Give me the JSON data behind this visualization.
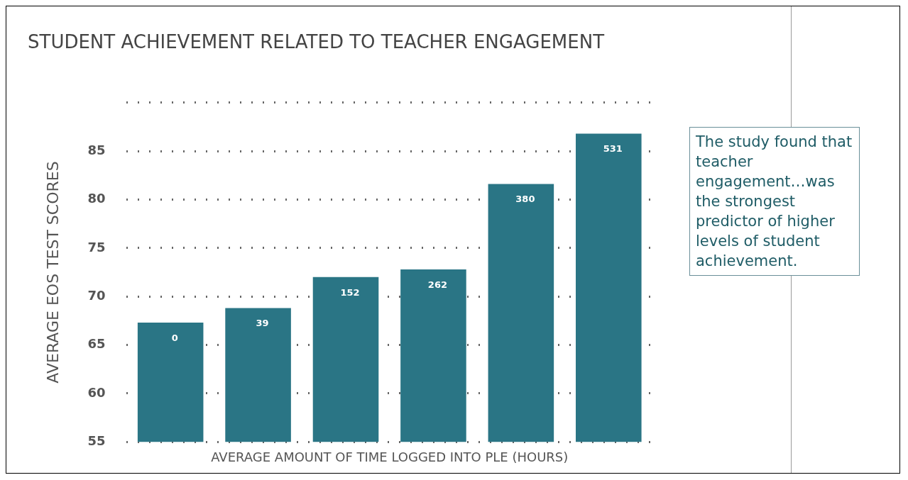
{
  "chart_data": {
    "type": "bar",
    "title": "STUDENT ACHIEVEMENT RELATED TO TEACHER ENGAGEMENT",
    "xlabel": "AVERAGE AMOUNT OF TIME LOGGED INTO PLE (HOURS)",
    "ylabel": "AVERAGE EOS TEST SCORES",
    "categories": [
      "0",
      "39",
      "152",
      "262",
      "380",
      "531"
    ],
    "values": [
      67.3,
      68.8,
      72,
      72.8,
      81.6,
      86.8
    ],
    "color": "#2a7585",
    "ylim": [
      55,
      90
    ],
    "yticks": [
      55,
      60,
      65,
      70,
      75,
      80,
      85,
      {
        "value": 90,
        "label": null
      }
    ],
    "grid": "y",
    "line_style": "dotted",
    "tick_labels": "y",
    "annotations": [
      "The study found that teacher engagement…was the strongest predictor of higher levels of student achievement."
    ]
  }
}
